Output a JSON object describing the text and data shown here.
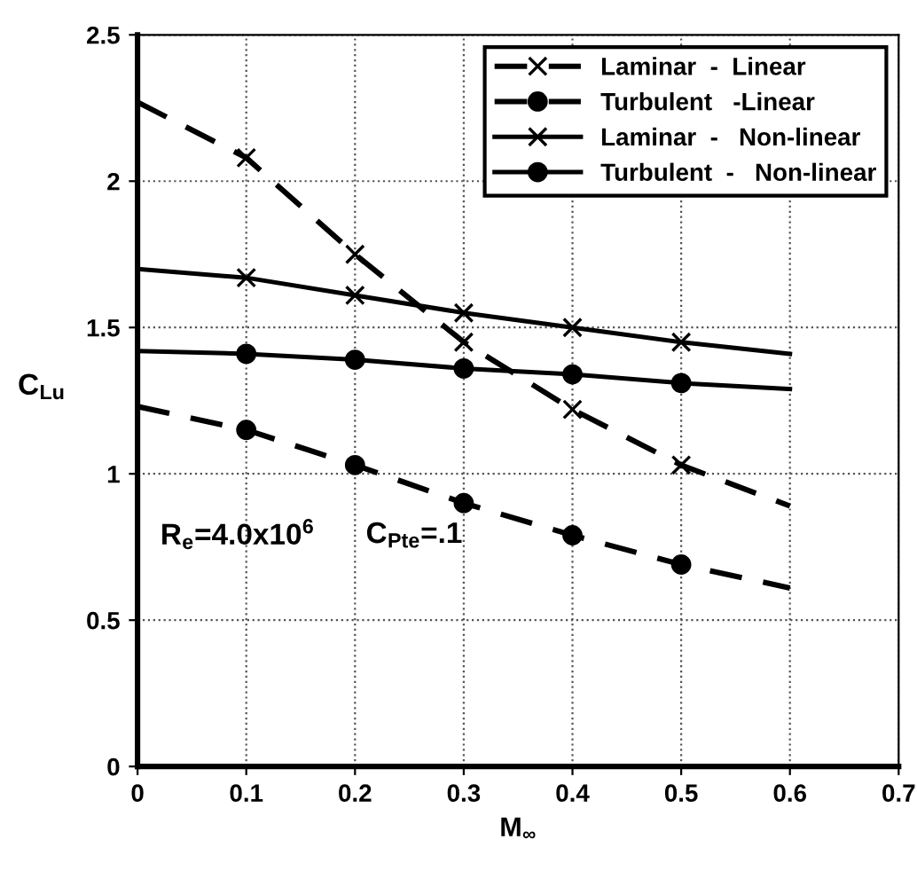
{
  "chart_data": {
    "type": "line",
    "xlabel": "M$_{∞}$",
    "ylabel": "C$_{Lu}$",
    "x": [
      0,
      0.1,
      0.2,
      0.3,
      0.4,
      0.5,
      0.6
    ],
    "series": [
      {
        "name": "Laminar  -  Linear",
        "color": "#000000",
        "marker": "cross",
        "line_style": "dashed",
        "values": [
          2.27,
          2.08,
          1.75,
          1.45,
          1.22,
          1.03,
          0.89
        ]
      },
      {
        "name": "Turbulent   -Linear",
        "color": "#000000",
        "marker": "circle",
        "line_style": "dashed",
        "values": [
          1.23,
          1.15,
          1.03,
          0.9,
          0.79,
          0.69,
          0.61
        ]
      },
      {
        "name": "Laminar  -   Non-linear",
        "color": "#000000",
        "marker": "cross",
        "line_style": "solid",
        "values": [
          1.7,
          1.67,
          1.61,
          1.55,
          1.5,
          1.45,
          1.41
        ]
      },
      {
        "name": "Turbulent  -   Non-linear",
        "color": "#000000",
        "marker": "circle",
        "line_style": "solid",
        "values": [
          1.42,
          1.41,
          1.39,
          1.36,
          1.34,
          1.31,
          1.29
        ]
      }
    ],
    "annotations": [
      "R$_{e}$=4.0x10$^{6}$",
      "C$_{Pte}$=.1"
    ],
    "xlim": [
      0,
      0.7
    ],
    "xticks": [
      0,
      0.1,
      0.2,
      0.3,
      0.4,
      0.5,
      0.6,
      0.7
    ],
    "ylim": [
      0,
      2.5
    ],
    "yticks": [
      0,
      0.5,
      1,
      1.5,
      2,
      2.5
    ],
    "grid": true,
    "legend": "top right"
  }
}
